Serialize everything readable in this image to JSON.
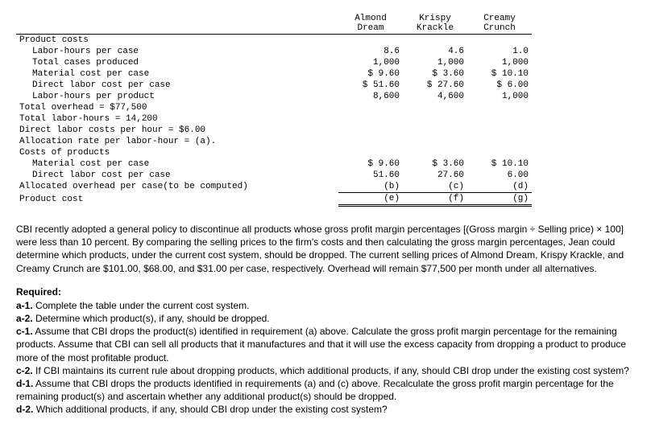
{
  "columns": [
    "Almond Dream",
    "Krispy Krackle",
    "Creamy Crunch"
  ],
  "sections": {
    "product_costs_label": "Product costs",
    "costs_of_products_label": "Costs of products"
  },
  "rows": {
    "labor_hours_case": {
      "label": "Labor-hours per case",
      "v": [
        "8.6",
        "4.6",
        "1.0"
      ]
    },
    "total_cases": {
      "label": "Total cases produced",
      "v": [
        "1,000",
        "1,000",
        "1,000"
      ]
    },
    "material_cost": {
      "label": "Material cost per case",
      "v": [
        "$  9.60",
        "$  3.60",
        "$ 10.10"
      ]
    },
    "direct_labor": {
      "label": "Direct labor cost per case",
      "v": [
        "$ 51.60",
        "$ 27.60",
        "$  6.00"
      ]
    },
    "labor_hours_prod": {
      "label": "Labor-hours per product",
      "v": [
        "8,600",
        "4,600",
        "1,000"
      ]
    },
    "total_overhead": {
      "label": "Total overhead = $77,500"
    },
    "total_labor_hours": {
      "label": "Total labor-hours = 14,200"
    },
    "dl_per_hour": {
      "label": "Direct labor costs per hour = $6.00"
    },
    "alloc_rate": {
      "label": "Allocation rate per labor-hour = (a)."
    },
    "cop_material": {
      "label": "Material cost per case",
      "v": [
        "$  9.60",
        "$  3.60",
        "$ 10.10"
      ]
    },
    "cop_direct_labor": {
      "label": "Direct labor cost per case",
      "v": [
        "51.60",
        "27.60",
        "6.00"
      ]
    },
    "alloc_overhead": {
      "label": "Allocated overhead per case(to be computed)",
      "v": [
        "(b)",
        "(c)",
        "(d)"
      ]
    },
    "product_cost": {
      "label": "Product cost",
      "v": [
        "(e)",
        "(f)",
        "(g)"
      ]
    }
  },
  "paragraph": "CBI recently adopted a general policy to discontinue all products whose gross profit margin percentages [(Gross margin ÷ Selling price) × 100] were less than 10 percent. By comparing the selling prices to the firm's costs and then calculating the gross margin percentages, Jean could determine which products, under the current cost system, should be dropped. The current selling prices of Almond Dream, Krispy Krackle, and Creamy Crunch are $101.00, $68.00, and $31.00 per case, respectively. Overhead will remain $77,500 per month under all alternatives.",
  "required_label": "Required:",
  "requirements": {
    "a1": {
      "k": "a-1.",
      "t": "Complete the table under the current cost system."
    },
    "a2": {
      "k": "a-2.",
      "t": "Determine which product(s), if any, should be dropped."
    },
    "c1": {
      "k": "c-1.",
      "t": "Assume that CBI drops the product(s) identified in requirement (a) above. Calculate the gross profit margin percentage for the remaining products. Assume that CBI can sell all products that it manufactures and that it will use the excess capacity from dropping a product to produce more of the most profitable product."
    },
    "c2": {
      "k": "c-2.",
      "t": "If CBI maintains its current rule about dropping products, which additional products, if any, should CBI drop under the existing cost system?"
    },
    "d1": {
      "k": "d-1.",
      "t": "Assume that CBI drops the products identified in requirements (a) and (c) above. Recalculate the gross profit margin percentage for the remaining product(s) and ascertain whether any additional product(s) should be dropped."
    },
    "d2": {
      "k": "d-2.",
      "t": "Which additional products, if any, should CBI drop under the existing cost system?"
    }
  }
}
